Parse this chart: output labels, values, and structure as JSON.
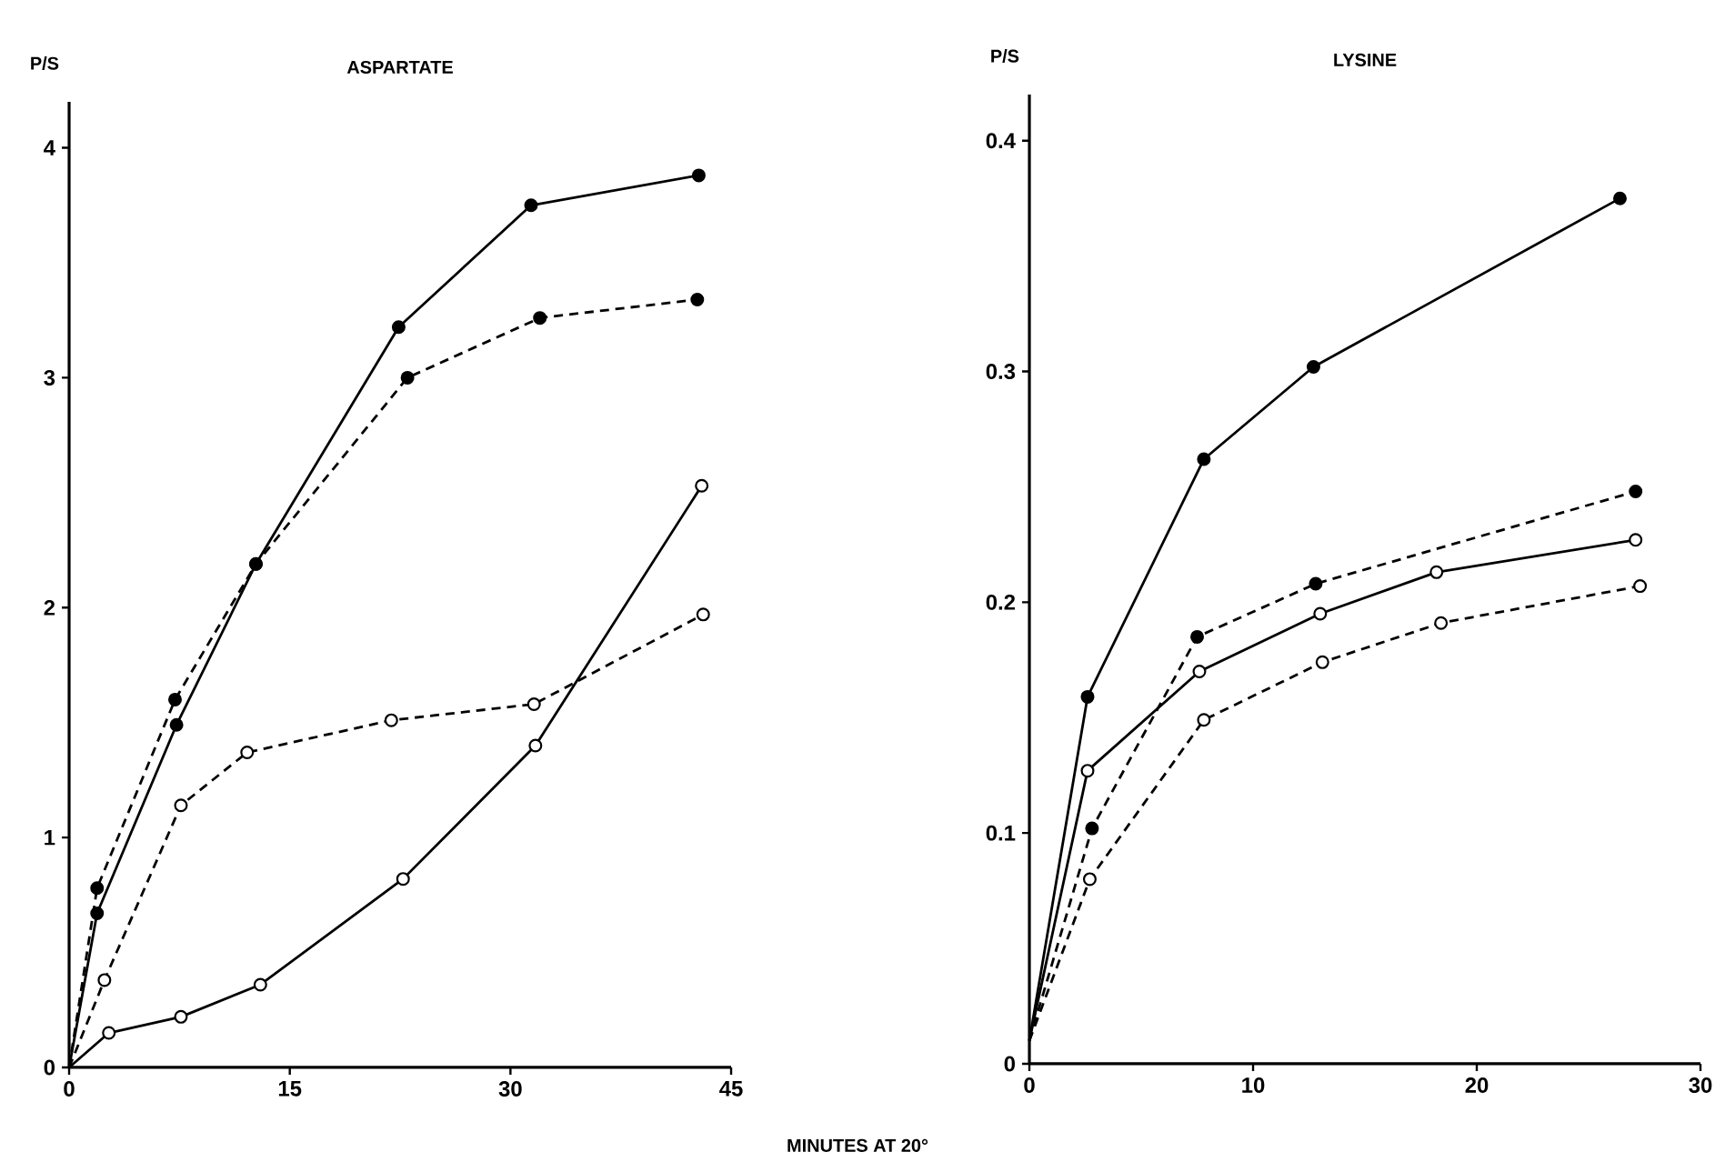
{
  "chart_data": [
    {
      "type": "line",
      "title": "ASPARTATE",
      "ylabel": "P/S",
      "xlabel": "MINUTES AT 20°",
      "xlim": [
        0,
        45
      ],
      "ylim": [
        0,
        4.2
      ],
      "xticks": [
        0,
        15,
        30,
        45
      ],
      "yticks": [
        0,
        1,
        2,
        3,
        4
      ],
      "grid": false,
      "series": [
        {
          "color": "#000000",
          "line_style": "solid",
          "marker": "circle",
          "x": [
            0,
            1.9,
            7.3,
            12.7,
            22.4,
            31.4,
            42.8
          ],
          "values": [
            0,
            0.67,
            1.49,
            2.19,
            3.22,
            3.75,
            3.88
          ]
        },
        {
          "color": "#000000",
          "line_style": "dashed",
          "marker": "circle",
          "x": [
            0,
            1.9,
            7.2,
            12.7,
            23.0,
            32.0,
            42.7
          ],
          "values": [
            0,
            0.78,
            1.6,
            2.19,
            3.0,
            3.26,
            3.34
          ]
        },
        {
          "color": "#000000",
          "line_style": "solid",
          "marker": "circle-open",
          "x": [
            0,
            2.7,
            7.6,
            13.0,
            22.7,
            31.7,
            43.0
          ],
          "values": [
            0,
            0.15,
            0.22,
            0.36,
            0.82,
            1.4,
            2.53
          ]
        },
        {
          "color": "#000000",
          "line_style": "dashed",
          "marker": "circle-open",
          "x": [
            0,
            2.4,
            7.6,
            12.1,
            21.9,
            31.6,
            43.1
          ],
          "values": [
            0,
            0.38,
            1.14,
            1.37,
            1.51,
            1.58,
            1.97
          ]
        }
      ]
    },
    {
      "type": "line",
      "title": "LYSINE",
      "ylabel": "P/S",
      "xlim": [
        0,
        30
      ],
      "ylim": [
        0,
        0.42
      ],
      "xticks": [
        0,
        10,
        20,
        30
      ],
      "yticks": [
        0,
        0.1,
        0.2,
        0.3,
        0.4
      ],
      "grid": false,
      "series": [
        {
          "color": "#000000",
          "line_style": "solid",
          "marker": "circle",
          "x": [
            0,
            2.6,
            7.8,
            12.7,
            26.4
          ],
          "values": [
            0.01,
            0.159,
            0.262,
            0.302,
            0.375
          ]
        },
        {
          "color": "#000000",
          "line_style": "dashed",
          "marker": "circle",
          "x": [
            0,
            2.8,
            7.5,
            12.8,
            27.1
          ],
          "values": [
            0.01,
            0.102,
            0.185,
            0.208,
            0.248
          ]
        },
        {
          "color": "#000000",
          "line_style": "solid",
          "marker": "circle-open",
          "x": [
            0,
            2.6,
            7.6,
            13.0,
            18.2,
            27.1
          ],
          "values": [
            0.01,
            0.127,
            0.17,
            0.195,
            0.213,
            0.227
          ]
        },
        {
          "color": "#000000",
          "line_style": "dashed",
          "marker": "circle-open",
          "x": [
            0,
            2.7,
            7.8,
            13.1,
            18.4,
            27.3
          ],
          "values": [
            0.01,
            0.08,
            0.149,
            0.174,
            0.191,
            0.207
          ]
        }
      ]
    }
  ]
}
